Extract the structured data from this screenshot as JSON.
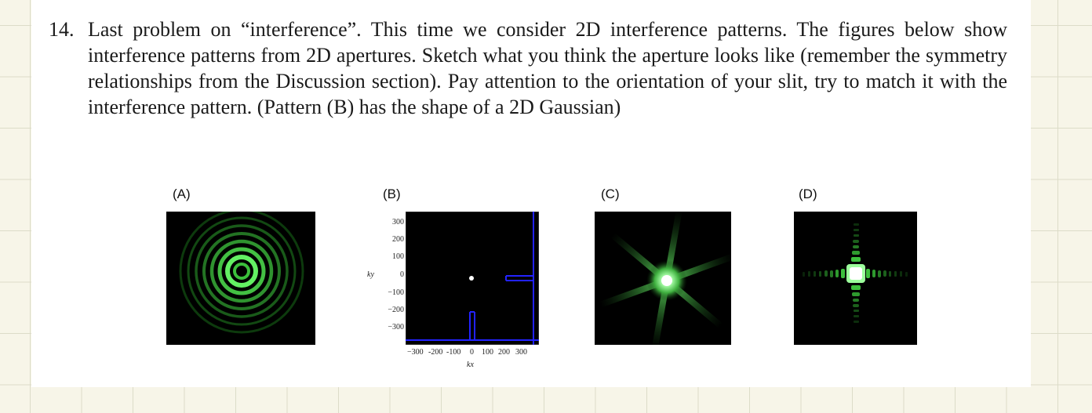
{
  "problem": {
    "number": "14.",
    "text": "Last problem on “interference”. This time we consider 2D interference patterns. The figures below show interference patterns from 2D apertures. Sketch what you think the aperture looks like (remember the symmetry relationships from the Discussion section). Pay attention to the orientation of your slit, try to match it with the interference pattern. (Pattern (B) has the shape of a 2D Gaussian)"
  },
  "figures": {
    "a": {
      "label": "(A)"
    },
    "b": {
      "label": "(B)",
      "y_ticks": [
        "300",
        "200",
        "100",
        "0",
        "−100",
        "−200",
        "−300"
      ],
      "x_ticks": [
        "−300",
        "-200",
        "-100",
        "0",
        "100",
        "200",
        "300"
      ],
      "x_axis": "kx",
      "y_axis": "ky"
    },
    "c": {
      "label": "(C)"
    },
    "d": {
      "label": "(D)"
    }
  },
  "colors": {
    "pattern": "#5cf05c",
    "bright_center": "#ffffff",
    "plot_frame": "#2222ff"
  }
}
